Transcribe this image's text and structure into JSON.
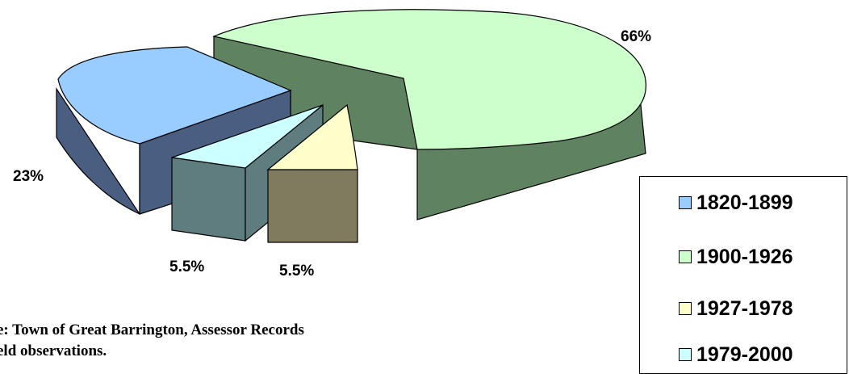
{
  "chart_data": {
    "type": "pie",
    "style": "3d-exploded",
    "slices": [
      {
        "label": "1820-1899",
        "value": 23,
        "label_text": "23%",
        "color": "#99CCFF",
        "side_color": "#4A5E82"
      },
      {
        "label": "1900-1926",
        "value": 66,
        "label_text": "66%",
        "color": "#CCFFCC",
        "side_color": "#5F8360"
      },
      {
        "label": "1927-1978",
        "value": 5.5,
        "label_text": "5.5%",
        "color": "#FFFFCC",
        "side_color": "#807A5E"
      },
      {
        "label": "1979-2000",
        "value": 5.5,
        "label_text": "5.5%",
        "color": "#CCFFFF",
        "side_color": "#5F7D7E"
      }
    ],
    "legend_position": "bottom-right"
  },
  "source_note": {
    "line1": "e: Town of Great Barrington, Assessor Records",
    "line2": "eld observations."
  }
}
